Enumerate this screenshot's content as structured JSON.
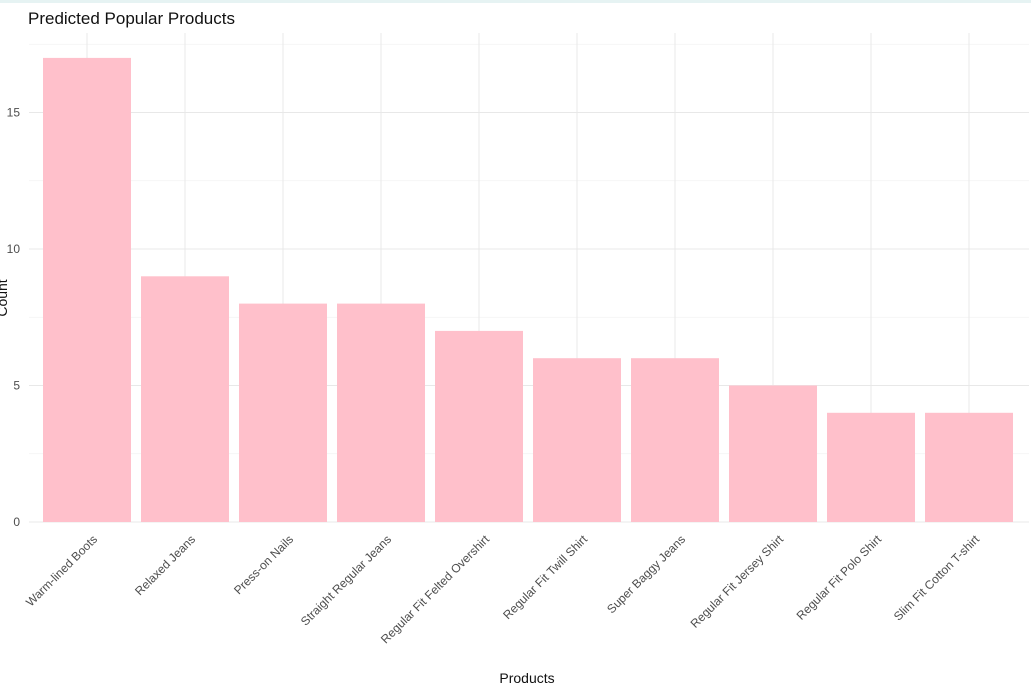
{
  "chart_data": {
    "type": "bar",
    "title": "Predicted Popular Products",
    "xlabel": "Products",
    "ylabel": "Count",
    "categories": [
      "Warm-lined Boots",
      "Relaxed Jeans",
      "Press-on Nails",
      "Straight Regular Jeans",
      "Regular Fit Felted Overshirt",
      "Regular Fit Twill Shirt",
      "Super Baggy Jeans",
      "Regular Fit Jersey Shirt",
      "Regular Fit Polo Shirt",
      "Slim Fit Cotton T-shirt"
    ],
    "values": [
      17,
      9,
      8,
      8,
      7,
      6,
      6,
      5,
      4,
      4
    ],
    "ylim": [
      0,
      18
    ],
    "yticks": [
      0,
      5,
      10,
      15
    ],
    "grid": true,
    "bar_color": "#ffc0cb",
    "legend": "none"
  }
}
